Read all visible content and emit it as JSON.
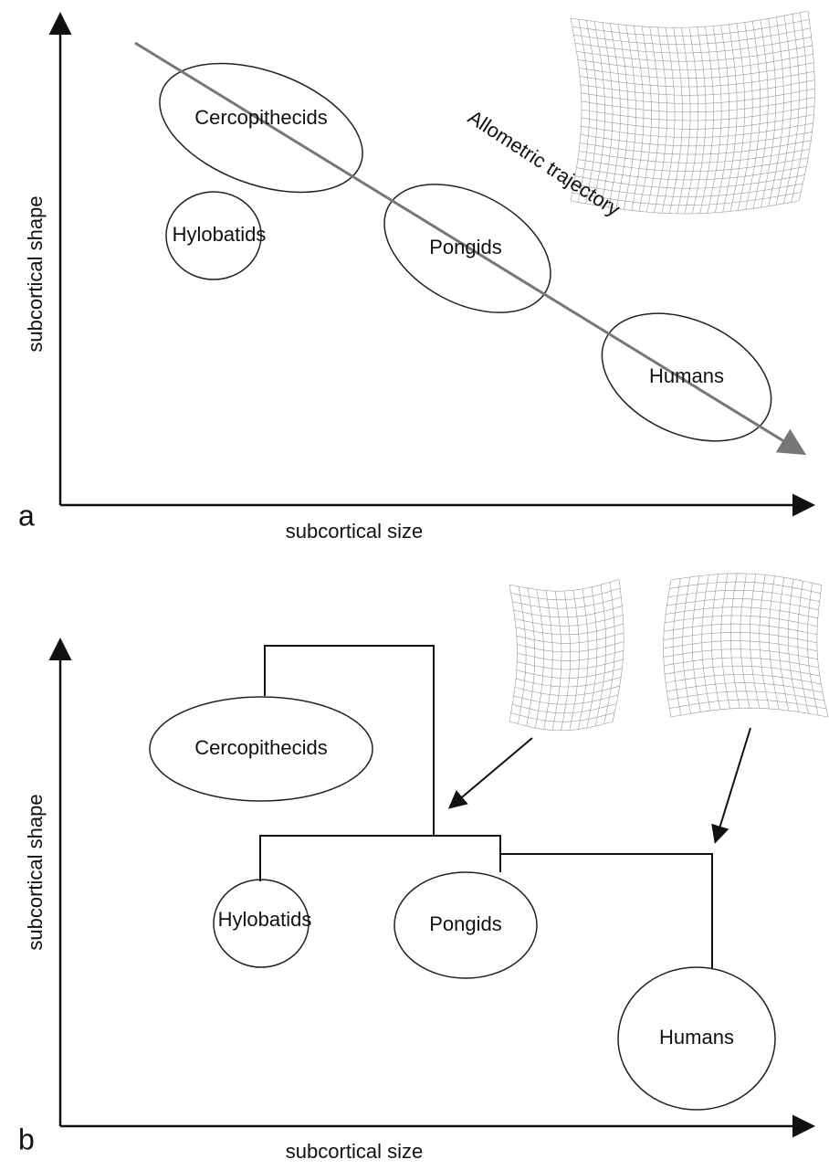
{
  "panels": [
    {
      "label": "a",
      "x_axis": "subcortical size",
      "y_axis": "subcortical shape",
      "groups": [
        "Cercopithecids",
        "Hylobatids",
        "Pongids",
        "Humans"
      ],
      "annotation": "Allometric trajectory"
    },
    {
      "label": "b",
      "x_axis": "subcortical size",
      "y_axis": "subcortical shape",
      "groups": [
        "Cercopithecids",
        "Hylobatids",
        "Pongids",
        "Humans"
      ]
    }
  ]
}
